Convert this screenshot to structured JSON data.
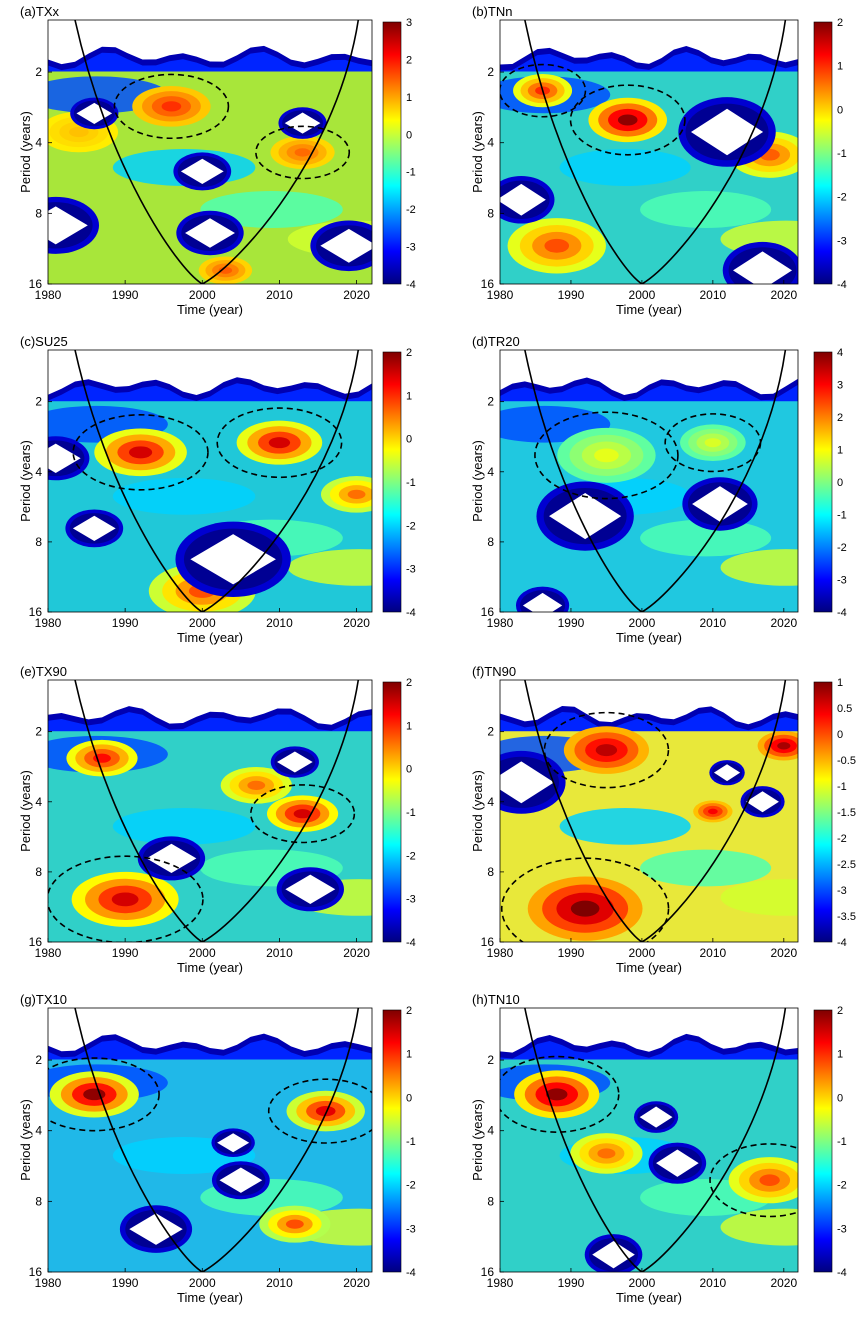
{
  "chart_data": [
    {
      "panel": "a",
      "type": "heatmap",
      "title": "(a)TXx",
      "xlabel": "Time (year)",
      "ylabel": "Period (years)",
      "xlim": [
        1980,
        2022
      ],
      "x_ticks": [
        "1980",
        "1990",
        "2000",
        "2010",
        "2020"
      ],
      "y_ticks": [
        "2",
        "4",
        "8",
        "16"
      ],
      "colorbar": {
        "min": -4,
        "max": 3,
        "ticks": [
          "3",
          "2",
          "1",
          "0",
          "-1",
          "-2",
          "-3",
          "-4"
        ]
      },
      "coi_minimum": {
        "x": 2000,
        "y": 16
      },
      "dominant": {
        "level": 0.4,
        "tint": "#a8e63a"
      },
      "hotspots": [
        {
          "x": 1996,
          "y": 2.8,
          "level": 1.8,
          "r": 0.22
        },
        {
          "x": 2013,
          "y": 4.4,
          "level": 1.4,
          "r": 0.18
        },
        {
          "x": 1984,
          "y": 3.6,
          "level": 0.8,
          "r": 0.22
        },
        {
          "x": 2003,
          "y": 14,
          "level": 1.5,
          "r": 0.15
        }
      ],
      "coldspots": [
        {
          "x": 1981,
          "y": 9,
          "r": 0.18
        },
        {
          "x": 2000,
          "y": 5.3,
          "r": 0.12
        },
        {
          "x": 2001,
          "y": 9.7,
          "r": 0.14
        },
        {
          "x": 2019,
          "y": 11,
          "r": 0.16
        },
        {
          "x": 1986,
          "y": 3,
          "r": 0.1
        },
        {
          "x": 2013,
          "y": 3.3,
          "r": 0.1
        }
      ]
    },
    {
      "panel": "b",
      "type": "heatmap",
      "title": "(b)TNn",
      "xlabel": "Time (year)",
      "ylabel": "Period (years)",
      "xlim": [
        1980,
        2022
      ],
      "x_ticks": [
        "1980",
        "1990",
        "2000",
        "2010",
        "2020"
      ],
      "y_ticks": [
        "2",
        "4",
        "8",
        "16"
      ],
      "colorbar": {
        "min": -4,
        "max": 2,
        "ticks": [
          "2",
          "1",
          "0",
          "-1",
          "-2",
          "-3",
          "-4"
        ]
      },
      "coi_minimum": {
        "x": 2000,
        "y": 16
      },
      "dominant": {
        "level": -0.8,
        "tint": "#30d0c8"
      },
      "hotspots": [
        {
          "x": 1998,
          "y": 3.2,
          "level": 1.9,
          "r": 0.24
        },
        {
          "x": 1986,
          "y": 2.4,
          "level": 1.0,
          "r": 0.18
        },
        {
          "x": 1988,
          "y": 11,
          "level": 0.8,
          "r": 0.3
        },
        {
          "x": 2018,
          "y": 4.5,
          "level": 0.7,
          "r": 0.25
        }
      ],
      "coldspots": [
        {
          "x": 2012,
          "y": 3.6,
          "r": 0.22
        },
        {
          "x": 1983,
          "y": 7,
          "r": 0.15
        },
        {
          "x": 2017,
          "y": 14,
          "r": 0.18
        }
      ]
    },
    {
      "panel": "c",
      "type": "heatmap",
      "title": "(c)SU25",
      "xlabel": "Time (year)",
      "ylabel": "Period (years)",
      "xlim": [
        1980,
        2022
      ],
      "x_ticks": [
        "1980",
        "1990",
        "2000",
        "2010",
        "2020"
      ],
      "y_ticks": [
        "2",
        "4",
        "8",
        "16"
      ],
      "colorbar": {
        "min": -4,
        "max": 2,
        "ticks": [
          "2",
          "1",
          "0",
          "-1",
          "-2",
          "-3",
          "-4"
        ]
      },
      "coi_minimum": {
        "x": 2000,
        "y": 16
      },
      "dominant": {
        "level": -1.0,
        "tint": "#20c8d8"
      },
      "hotspots": [
        {
          "x": 1992,
          "y": 3.3,
          "level": 1.5,
          "r": 0.26
        },
        {
          "x": 2010,
          "y": 3.0,
          "level": 1.5,
          "r": 0.24
        },
        {
          "x": 2000,
          "y": 13,
          "level": 0.8,
          "r": 0.3
        },
        {
          "x": 2020,
          "y": 5,
          "level": 0.6,
          "r": 0.2
        }
      ],
      "coldspots": [
        {
          "x": 2004,
          "y": 9.5,
          "r": 0.24
        },
        {
          "x": 1986,
          "y": 7,
          "r": 0.12
        },
        {
          "x": 1981,
          "y": 3.5,
          "r": 0.14
        }
      ]
    },
    {
      "panel": "d",
      "type": "heatmap",
      "title": "(d)TR20",
      "xlabel": "Time (year)",
      "ylabel": "Period (years)",
      "xlim": [
        1980,
        2022
      ],
      "x_ticks": [
        "1980",
        "1990",
        "2000",
        "2010",
        "2020"
      ],
      "y_ticks": [
        "2",
        "4",
        "8",
        "16"
      ],
      "colorbar": {
        "min": -4,
        "max": 4,
        "ticks": [
          "4",
          "3",
          "2",
          "1",
          "0",
          "-1",
          "-2",
          "-3",
          "-4"
        ]
      },
      "coi_minimum": {
        "x": 2000,
        "y": 16
      },
      "dominant": {
        "level": -0.6,
        "tint": "#20c8e0"
      },
      "hotspots": [
        {
          "x": 1995,
          "y": 3.4,
          "level": 0.8,
          "r": 0.3
        },
        {
          "x": 2010,
          "y": 3.0,
          "level": 0.7,
          "r": 0.2
        }
      ],
      "coldspots": [
        {
          "x": 1992,
          "y": 6.2,
          "r": 0.22
        },
        {
          "x": 2011,
          "y": 5.5,
          "r": 0.17
        },
        {
          "x": 1986,
          "y": 15,
          "r": 0.12
        }
      ]
    },
    {
      "panel": "e",
      "type": "heatmap",
      "title": "(e)TX90",
      "xlabel": "Time (year)",
      "ylabel": "Period (years)",
      "xlim": [
        1980,
        2022
      ],
      "x_ticks": [
        "1980",
        "1990",
        "2000",
        "2010",
        "2020"
      ],
      "y_ticks": [
        "2",
        "4",
        "8",
        "16"
      ],
      "colorbar": {
        "min": -4,
        "max": 2,
        "ticks": [
          "2",
          "1",
          "0",
          "-1",
          "-2",
          "-3",
          "-4"
        ]
      },
      "coi_minimum": {
        "x": 2000,
        "y": 16
      },
      "dominant": {
        "level": -0.8,
        "tint": "#30d0c8"
      },
      "hotspots": [
        {
          "x": 1990,
          "y": 10.5,
          "level": 1.5,
          "r": 0.3
        },
        {
          "x": 2013,
          "y": 4.5,
          "level": 1.5,
          "r": 0.2
        },
        {
          "x": 1987,
          "y": 2.6,
          "level": 1.2,
          "r": 0.2
        },
        {
          "x": 2007,
          "y": 3.4,
          "level": 0.6,
          "r": 0.2
        }
      ],
      "coldspots": [
        {
          "x": 1996,
          "y": 7,
          "r": 0.14
        },
        {
          "x": 2014,
          "y": 9.5,
          "r": 0.14
        },
        {
          "x": 2012,
          "y": 2.7,
          "r": 0.1
        }
      ]
    },
    {
      "panel": "f",
      "type": "heatmap",
      "title": "(f)TN90",
      "xlabel": "Time (year)",
      "ylabel": "Period (years)",
      "xlim": [
        1980,
        2022
      ],
      "x_ticks": [
        "1980",
        "1990",
        "2000",
        "2010",
        "2020"
      ],
      "y_ticks": [
        "2",
        "4",
        "8",
        "16"
      ],
      "colorbar": {
        "min": -4,
        "max": 1,
        "ticks": [
          "1",
          "0.5",
          "0",
          "-0.5",
          "-1",
          "-1.5",
          "-2",
          "-2.5",
          "-3",
          "-3.5",
          "-4"
        ]
      },
      "coi_minimum": {
        "x": 2000,
        "y": 16
      },
      "dominant": {
        "level": -0.9,
        "tint": "#e8e83a"
      },
      "hotspots": [
        {
          "x": 1992,
          "y": 11.5,
          "level": 1.0,
          "r": 0.35
        },
        {
          "x": 1995,
          "y": 2.4,
          "level": 0.7,
          "r": 0.26
        },
        {
          "x": 2020,
          "y": 2.3,
          "level": 0.8,
          "r": 0.16
        },
        {
          "x": 2010,
          "y": 4.4,
          "level": 0.4,
          "r": 0.12
        }
      ],
      "coldspots": [
        {
          "x": 1983,
          "y": 3.3,
          "r": 0.2
        },
        {
          "x": 2017,
          "y": 4,
          "r": 0.1
        },
        {
          "x": 2012,
          "y": 3,
          "r": 0.08
        }
      ]
    },
    {
      "panel": "g",
      "type": "heatmap",
      "title": "(g)TX10",
      "xlabel": "Time (year)",
      "ylabel": "Period (years)",
      "xlim": [
        1980,
        2022
      ],
      "x_ticks": [
        "1980",
        "1990",
        "2000",
        "2010",
        "2020"
      ],
      "y_ticks": [
        "2",
        "4",
        "8",
        "16"
      ],
      "colorbar": {
        "min": -4,
        "max": 2,
        "ticks": [
          "2",
          "1",
          "0",
          "-1",
          "-2",
          "-3",
          "-4"
        ]
      },
      "coi_minimum": {
        "x": 2000,
        "y": 16
      },
      "dominant": {
        "level": -1.2,
        "tint": "#20b8e8"
      },
      "hotspots": [
        {
          "x": 1986,
          "y": 2.8,
          "level": 1.9,
          "r": 0.25
        },
        {
          "x": 2016,
          "y": 3.3,
          "level": 1.4,
          "r": 0.22
        },
        {
          "x": 2012,
          "y": 10,
          "level": 0.8,
          "r": 0.2
        }
      ],
      "coldspots": [
        {
          "x": 1994,
          "y": 10.5,
          "r": 0.15
        },
        {
          "x": 2005,
          "y": 6.5,
          "r": 0.12
        },
        {
          "x": 2004,
          "y": 4.5,
          "r": 0.09
        }
      ]
    },
    {
      "panel": "h",
      "type": "heatmap",
      "title": "(h)TN10",
      "xlabel": "Time (year)",
      "ylabel": "Period (years)",
      "xlim": [
        1980,
        2022
      ],
      "x_ticks": [
        "1980",
        "1990",
        "2000",
        "2010",
        "2020"
      ],
      "y_ticks": [
        "2",
        "4",
        "8",
        "16"
      ],
      "colorbar": {
        "min": -4,
        "max": 2,
        "ticks": [
          "2",
          "1",
          "0",
          "-1",
          "-2",
          "-3",
          "-4"
        ]
      },
      "coi_minimum": {
        "x": 2000,
        "y": 16
      },
      "dominant": {
        "level": -0.8,
        "tint": "#30d0c8"
      },
      "hotspots": [
        {
          "x": 1988,
          "y": 2.8,
          "level": 1.9,
          "r": 0.26
        },
        {
          "x": 2018,
          "y": 6.5,
          "level": 0.8,
          "r": 0.25
        },
        {
          "x": 1995,
          "y": 5,
          "level": 0.6,
          "r": 0.22
        }
      ],
      "coldspots": [
        {
          "x": 2005,
          "y": 5.5,
          "r": 0.13
        },
        {
          "x": 1996,
          "y": 13.5,
          "r": 0.13
        },
        {
          "x": 2002,
          "y": 3.5,
          "r": 0.1
        }
      ]
    }
  ]
}
